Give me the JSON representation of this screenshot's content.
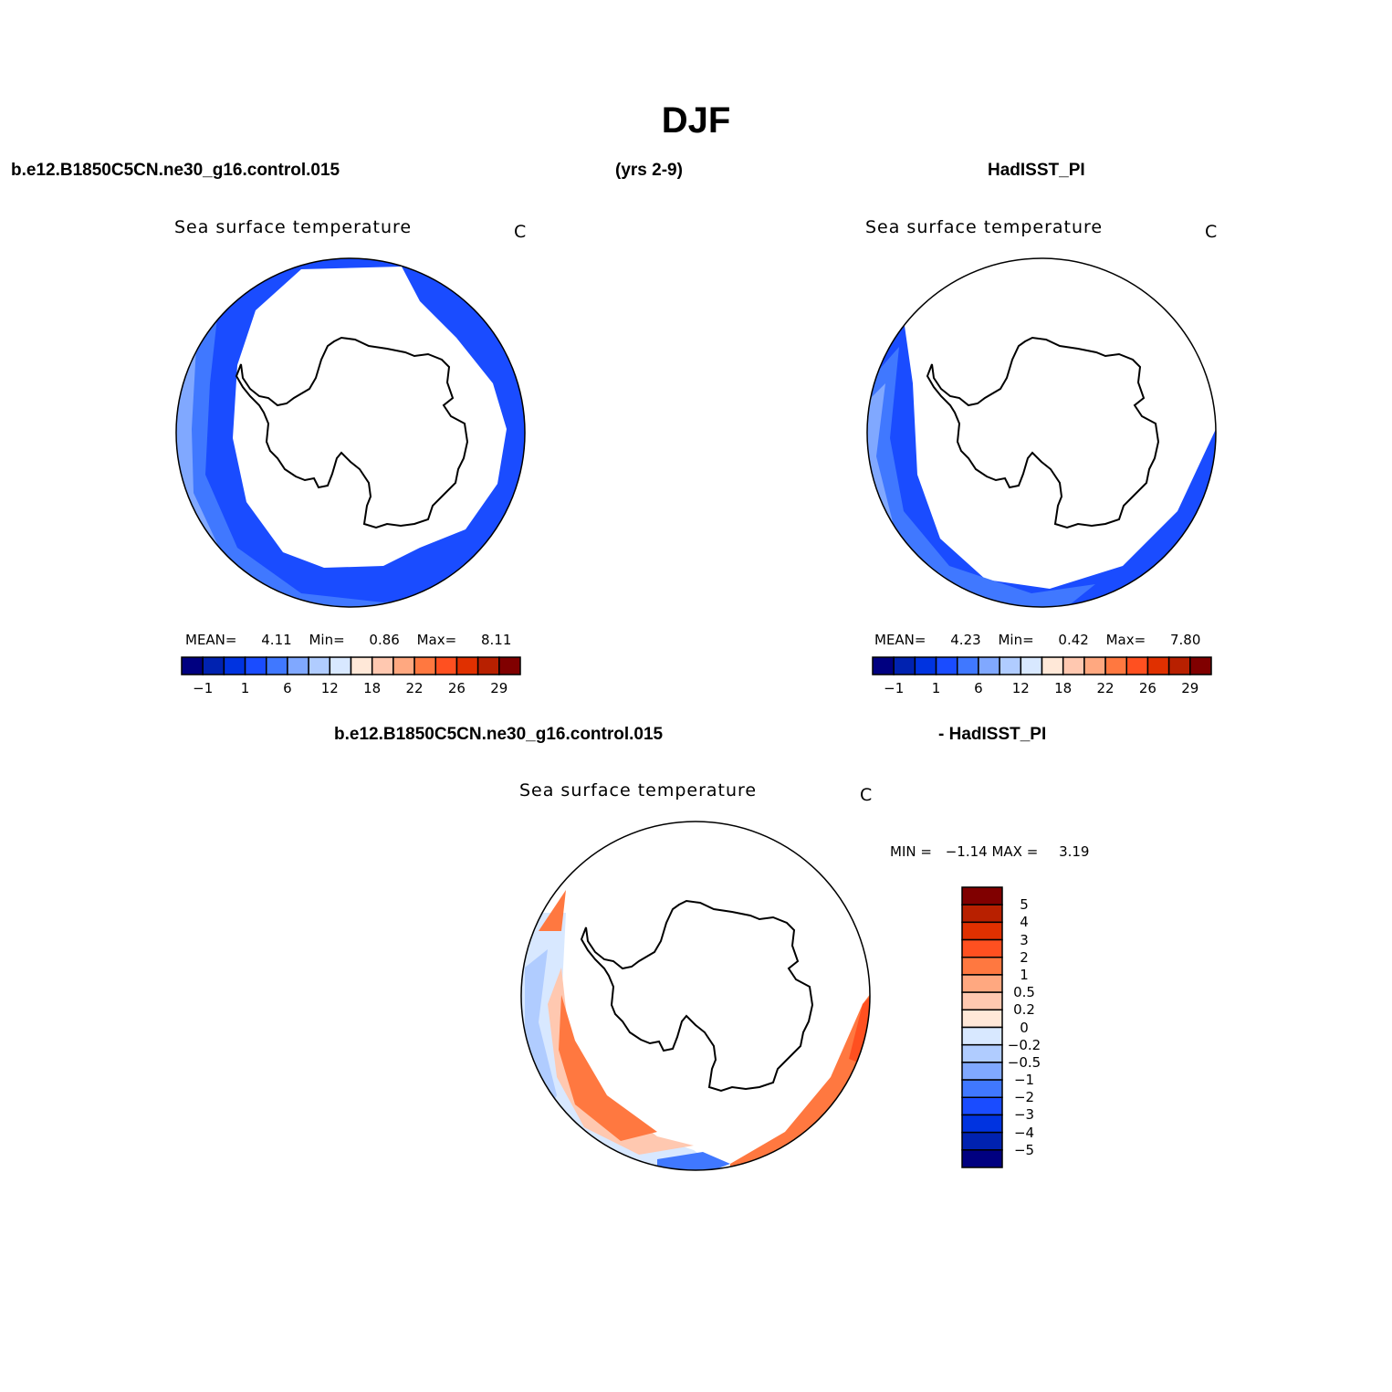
{
  "title": "DJF",
  "top_row": {
    "left_case": "b.e12.B1850C5CN.ne30_g16.control.015",
    "years": "(yrs 2-9)",
    "right_case": "HadISST_PI"
  },
  "bottom_row": {
    "left_case": "b.e12.B1850C5CN.ne30_g16.control.015",
    "right_case": "- HadISST_PI"
  },
  "colors": [
    "#000080",
    "#0022b0",
    "#0033e0",
    "#1a4cff",
    "#4078ff",
    "#80a8ff",
    "#b0ccff",
    "#d8e8ff",
    "#ffe8d8",
    "#ffc8b0",
    "#ffa880",
    "#ff7840",
    "#ff5020",
    "#e03000",
    "#b82000",
    "#800000"
  ],
  "chart_data": [
    {
      "type": "heatmap",
      "projection": "south-polar-stereographic",
      "title": "Sea surface temperature",
      "units": "C",
      "stats": {
        "mean_label": "MEAN=",
        "mean": "4.11",
        "min_label": "Min=",
        "min": "0.86",
        "max_label": "Max=",
        "max": "8.11"
      },
      "colorbar_ticks": [
        "−1",
        "1",
        "6",
        "12",
        "18",
        "22",
        "26",
        "29"
      ]
    },
    {
      "type": "heatmap",
      "projection": "south-polar-stereographic",
      "title": "Sea surface temperature",
      "units": "C",
      "stats": {
        "mean_label": "MEAN=",
        "mean": "4.23",
        "min_label": "Min=",
        "min": "0.42",
        "max_label": "Max=",
        "max": "7.80"
      },
      "colorbar_ticks": [
        "−1",
        "1",
        "6",
        "12",
        "18",
        "22",
        "26",
        "29"
      ]
    },
    {
      "type": "heatmap",
      "projection": "south-polar-stereographic",
      "title": "Sea surface temperature",
      "units": "C",
      "stats": {
        "min_label": "MIN =",
        "min": "−1.14",
        "max_label": "MAX =",
        "max": "3.19"
      },
      "colorbar_ticks": [
        "5",
        "4",
        "3",
        "2",
        "1",
        "0.5",
        "0.2",
        "0",
        "−0.2",
        "−0.5",
        "−1",
        "−2",
        "−3",
        "−4",
        "−5"
      ]
    }
  ]
}
